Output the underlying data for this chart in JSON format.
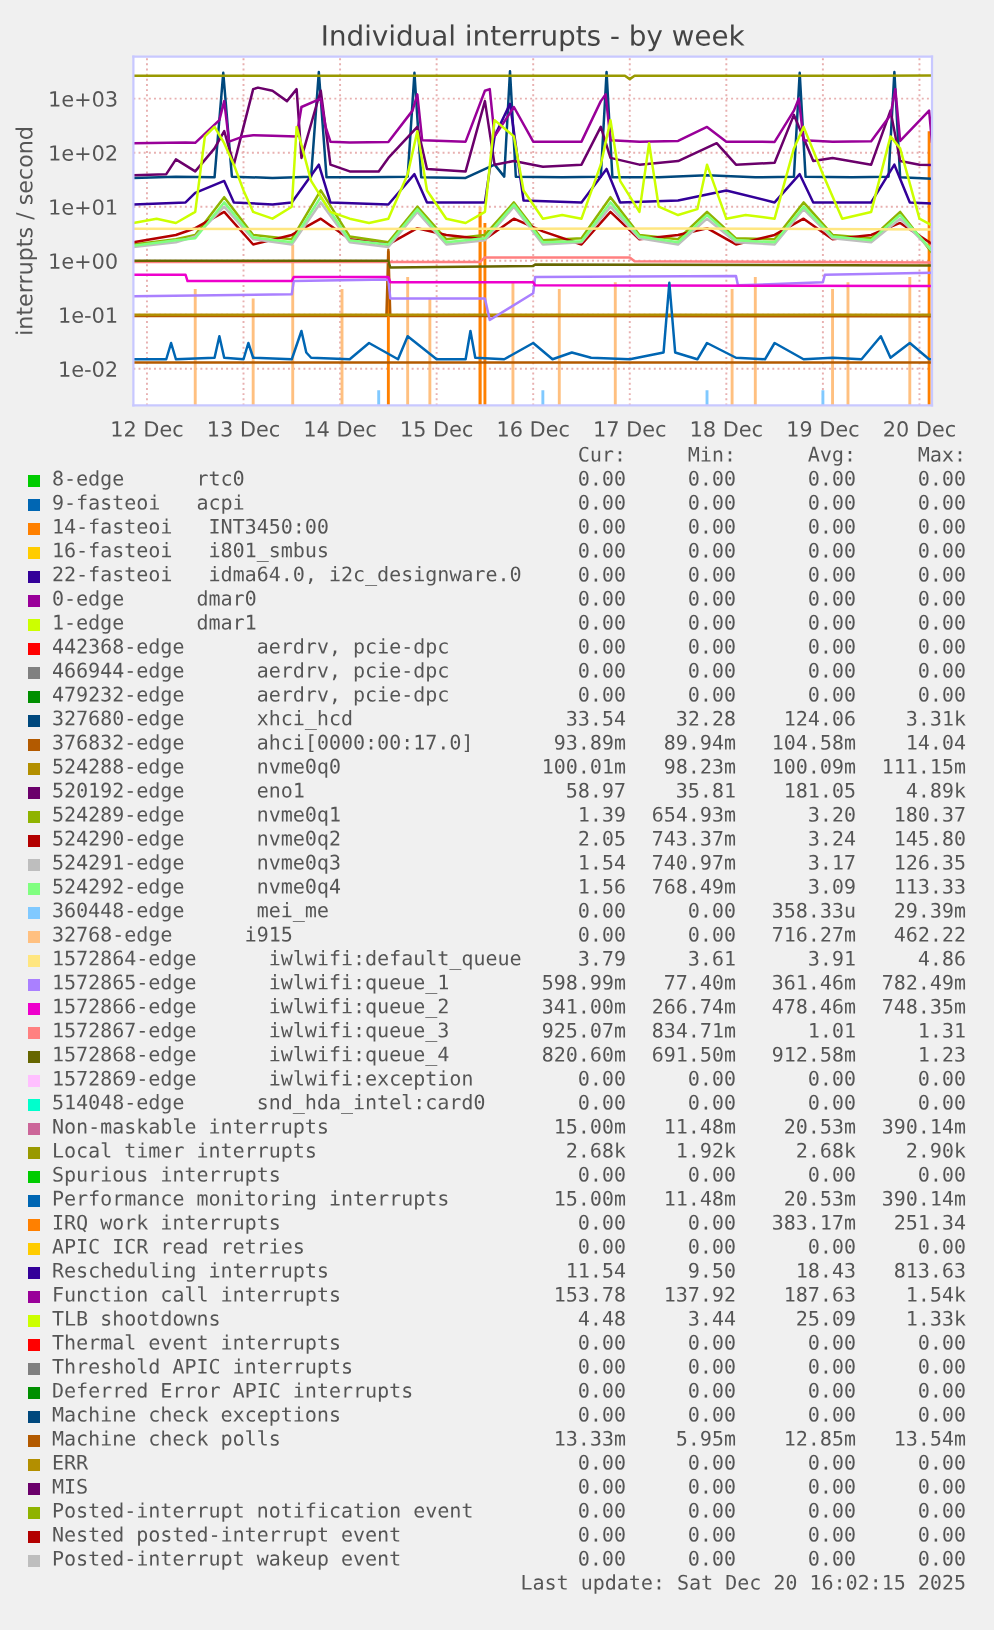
{
  "chart_data": {
    "type": "line",
    "title": "Individual interrupts - by week",
    "ylabel": "interrupts / second",
    "log": "y",
    "grid": true,
    "legend": "bottom",
    "marker": "none",
    "line_style": "solid",
    "xlim": [
      "2025-12-12T08:38",
      "2025-12-20T15:07"
    ],
    "ylim": [
      0.0021,
      6000
    ],
    "xticks": [
      {
        "value": "2025-12-12T12:00",
        "label": "12 Dec"
      },
      {
        "value": "2025-12-13T12:00",
        "label": "13 Dec"
      },
      {
        "value": "2025-12-14T12:00",
        "label": "14 Dec"
      },
      {
        "value": "2025-12-15T12:00",
        "label": "15 Dec"
      },
      {
        "value": "2025-12-16T12:00",
        "label": "16 Dec"
      },
      {
        "value": "2025-12-17T12:00",
        "label": "17 Dec"
      },
      {
        "value": "2025-12-18T12:00",
        "label": "18 Dec"
      },
      {
        "value": "2025-12-19T12:00",
        "label": "19 Dec"
      },
      {
        "value": "2025-12-20T12:00",
        "label": "20 Dec"
      }
    ],
    "yticks": [
      {
        "value": 0.01,
        "label": "1e-02"
      },
      {
        "value": 0.1,
        "label": "1e-01"
      },
      {
        "value": 1,
        "label": "1e+00"
      },
      {
        "value": 10,
        "label": "1e+01"
      },
      {
        "value": 100,
        "label": "1e+02"
      },
      {
        "value": 1000,
        "label": "1e+03"
      }
    ],
    "series": [
      {
        "name": "8-edge      rtc0",
        "color": "#00cc00"
      },
      {
        "name": "9-fasteoi   acpi",
        "color": "#0066b3"
      },
      {
        "name": "14-fasteoi   INT3450:00",
        "color": "#ff8000"
      },
      {
        "name": "16-fasteoi   i801_smbus",
        "color": "#ffcc00"
      },
      {
        "name": "22-fasteoi   idma64.0, i2c_designware.0",
        "color": "#330099"
      },
      {
        "name": "0-edge      dmar0",
        "color": "#990099"
      },
      {
        "name": "1-edge      dmar1",
        "color": "#ccff00"
      },
      {
        "name": "442368-edge      aerdrv, pcie-dpc",
        "color": "#ff0000"
      },
      {
        "name": "466944-edge      aerdrv, pcie-dpc",
        "color": "#808080"
      },
      {
        "name": "479232-edge      aerdrv, pcie-dpc",
        "color": "#008f00"
      },
      {
        "name": "327680-edge      xhci_hcd",
        "color": "#00487d",
        "x": [
          "2025-12-12T08:38",
          "2025-12-12T19:12",
          "2025-12-13T04:48",
          "2025-12-13T06:58",
          "2025-12-13T09:07",
          "2025-12-13T19:12",
          "2025-12-14T04:48",
          "2025-12-14T06:43",
          "2025-12-14T08:38",
          "2025-12-14T19:12",
          "2025-12-15T04:48",
          "2025-12-15T06:29",
          "2025-12-15T08:10",
          "2025-12-15T19:12",
          "2025-12-16T02:24",
          "2025-12-16T04:48",
          "2025-12-16T06:14",
          "2025-12-16T07:41",
          "2025-12-16T19:12",
          "2025-12-17T04:48",
          "2025-12-17T06:14",
          "2025-12-17T07:41",
          "2025-12-17T19:12",
          "2025-12-18T07:12",
          "2025-12-18T19:12",
          "2025-12-19T04:48",
          "2025-12-19T06:14",
          "2025-12-19T07:41",
          "2025-12-19T19:12",
          "2025-12-20T04:19",
          "2025-12-20T05:46",
          "2025-12-20T07:12",
          "2025-12-20T15:07"
        ],
        "values": [
          34,
          36,
          35,
          3000,
          36,
          34,
          36,
          3100,
          35,
          35,
          36,
          3000,
          35,
          34,
          60,
          36,
          3200,
          36,
          35,
          36,
          3100,
          35,
          35,
          38,
          35,
          36,
          3000,
          36,
          35,
          36,
          3100,
          35,
          33
        ]
      },
      {
        "name": "376832-edge      ahci[0000:00:17.0]",
        "color": "#b35a00",
        "x": [
          "2025-12-12T08:38",
          "2025-12-14T23:31",
          "2025-12-15T00:00",
          "2025-12-15T00:29",
          "2025-12-20T15:07"
        ],
        "values": [
          0.095,
          0.095,
          1.6,
          0.095,
          0.094
        ]
      },
      {
        "name": "524288-edge      nvme0q0",
        "color": "#b38f00",
        "x": [
          "2025-12-12T08:38",
          "2025-12-14T00:00",
          "2025-12-16T00:00",
          "2025-12-18T00:00",
          "2025-12-20T15:07"
        ],
        "values": [
          0.1,
          0.1,
          0.1,
          0.1,
          0.1
        ]
      },
      {
        "name": "520192-edge      eno1",
        "color": "#6b006b",
        "x": [
          "2025-12-12T08:38",
          "2025-12-12T16:48",
          "2025-12-12T19:12",
          "2025-12-13T00:00",
          "2025-12-13T04:48",
          "2025-12-13T07:12",
          "2025-12-13T09:36",
          "2025-12-13T14:24",
          "2025-12-13T15:36",
          "2025-12-13T19:12",
          "2025-12-13T22:48",
          "2025-12-14T01:12",
          "2025-12-14T02:24",
          "2025-12-14T06:00",
          "2025-12-14T07:12",
          "2025-12-14T09:36",
          "2025-12-14T14:24",
          "2025-12-14T21:36",
          "2025-12-15T00:00",
          "2025-12-15T07:12",
          "2025-12-15T09:36",
          "2025-12-15T19:12",
          "2025-12-16T00:00",
          "2025-12-16T02:24",
          "2025-12-16T07:12",
          "2025-12-16T14:24",
          "2025-12-17T00:00",
          "2025-12-17T04:48",
          "2025-12-17T07:12",
          "2025-12-17T14:24",
          "2025-12-18T00:00",
          "2025-12-18T09:36",
          "2025-12-18T14:24",
          "2025-12-19T00:00",
          "2025-12-19T04:48",
          "2025-12-19T09:36",
          "2025-12-19T14:24",
          "2025-12-20T00:00",
          "2025-12-20T04:48",
          "2025-12-20T07:12",
          "2025-12-20T12:00",
          "2025-12-20T15:07"
        ],
        "values": [
          38,
          40,
          75,
          45,
          120,
          250,
          60,
          1500,
          1600,
          1400,
          900,
          1500,
          80,
          700,
          1400,
          60,
          45,
          45,
          80,
          300,
          50,
          45,
          900,
          60,
          70,
          55,
          60,
          300,
          80,
          60,
          70,
          150,
          60,
          65,
          500,
          70,
          80,
          60,
          600,
          70,
          60,
          59
        ]
      },
      {
        "name": "524289-edge      nvme0q1",
        "color": "#8fb300",
        "x": [
          "2025-12-12T08:38",
          "2025-12-12T19:12",
          "2025-12-13T00:00",
          "2025-12-13T07:12",
          "2025-12-13T14:24",
          "2025-12-14T00:00",
          "2025-12-14T07:12",
          "2025-12-14T14:24",
          "2025-12-15T00:00",
          "2025-12-15T07:12",
          "2025-12-15T14:24",
          "2025-12-16T00:00",
          "2025-12-16T07:12",
          "2025-12-16T14:24",
          "2025-12-17T00:00",
          "2025-12-17T07:12",
          "2025-12-17T14:24",
          "2025-12-18T00:00",
          "2025-12-18T07:12",
          "2025-12-18T14:24",
          "2025-12-19T00:00",
          "2025-12-19T07:12",
          "2025-12-19T14:24",
          "2025-12-20T00:00",
          "2025-12-20T07:12",
          "2025-12-20T15:07"
        ],
        "values": [
          2,
          2.5,
          3,
          15,
          3,
          2.5,
          20,
          2.8,
          2.2,
          10,
          2.5,
          3,
          12,
          2.4,
          2.6,
          15,
          3,
          2.5,
          8,
          2.6,
          2.5,
          12,
          3,
          2.6,
          8,
          1.4
        ]
      },
      {
        "name": "524290-edge      nvme0q2",
        "color": "#b30000",
        "x": [
          "2025-12-12T08:38",
          "2025-12-12T19:12",
          "2025-12-13T00:00",
          "2025-12-13T07:12",
          "2025-12-13T14:24",
          "2025-12-14T00:00",
          "2025-12-14T07:12",
          "2025-12-14T14:24",
          "2025-12-15T00:00",
          "2025-12-15T07:12",
          "2025-12-15T14:24",
          "2025-12-16T00:00",
          "2025-12-16T07:12",
          "2025-12-16T14:24",
          "2025-12-17T00:00",
          "2025-12-17T07:12",
          "2025-12-17T14:24",
          "2025-12-18T00:00",
          "2025-12-18T07:12",
          "2025-12-18T14:24",
          "2025-12-19T00:00",
          "2025-12-19T07:12",
          "2025-12-19T14:24",
          "2025-12-20T00:00",
          "2025-12-20T07:12",
          "2025-12-20T15:07"
        ],
        "values": [
          2.2,
          3,
          4,
          8,
          2,
          3,
          6,
          2.5,
          2,
          4,
          3,
          2.5,
          6,
          3.5,
          2,
          8,
          2.5,
          3,
          4,
          2,
          3,
          6,
          2.5,
          3,
          5,
          2.05
        ]
      },
      {
        "name": "524291-edge      nvme0q3",
        "color": "#bebebe",
        "x": [
          "2025-12-12T08:38",
          "2025-12-12T19:12",
          "2025-12-13T00:00",
          "2025-12-13T07:12",
          "2025-12-13T14:24",
          "2025-12-14T00:00",
          "2025-12-14T07:12",
          "2025-12-14T14:24",
          "2025-12-15T00:00",
          "2025-12-15T07:12",
          "2025-12-15T14:24",
          "2025-12-16T00:00",
          "2025-12-16T07:12",
          "2025-12-16T14:24",
          "2025-12-17T00:00",
          "2025-12-17T07:12",
          "2025-12-17T14:24",
          "2025-12-18T00:00",
          "2025-12-18T07:12",
          "2025-12-18T14:24",
          "2025-12-19T00:00",
          "2025-12-19T07:12",
          "2025-12-19T14:24",
          "2025-12-20T00:00",
          "2025-12-20T07:12",
          "2025-12-20T15:07"
        ],
        "values": [
          1.8,
          2.2,
          2.8,
          10,
          2.5,
          2,
          12,
          2.2,
          1.8,
          8,
          2,
          2.4,
          10,
          2,
          2.2,
          10,
          2.6,
          2,
          6,
          2.2,
          2,
          9,
          2.6,
          2.2,
          6,
          1.54
        ]
      },
      {
        "name": "524292-edge      nvme0q4",
        "color": "#80ff80",
        "x": [
          "2025-12-12T08:38",
          "2025-12-12T19:12",
          "2025-12-13T00:00",
          "2025-12-13T07:12",
          "2025-12-13T14:24",
          "2025-12-14T00:00",
          "2025-12-14T07:12",
          "2025-12-14T14:24",
          "2025-12-15T00:00",
          "2025-12-15T07:12",
          "2025-12-15T14:24",
          "2025-12-16T00:00",
          "2025-12-16T07:12",
          "2025-12-16T14:24",
          "2025-12-17T00:00",
          "2025-12-17T07:12",
          "2025-12-17T14:24",
          "2025-12-18T00:00",
          "2025-12-18T07:12",
          "2025-12-18T14:24",
          "2025-12-19T00:00",
          "2025-12-19T07:12",
          "2025-12-19T14:24",
          "2025-12-20T00:00",
          "2025-12-20T07:12",
          "2025-12-20T15:07"
        ],
        "values": [
          1.9,
          2.4,
          2.6,
          12,
          2.7,
          2.2,
          15,
          2.4,
          2,
          9,
          2.2,
          2.6,
          11,
          2.2,
          2.3,
          12,
          2.8,
          2.2,
          7,
          2.4,
          2.2,
          10,
          2.8,
          2.4,
          7,
          1.56
        ]
      },
      {
        "name": "360448-edge      mei_me",
        "color": "#80c9ff",
        "type": "bar",
        "x": [
          "2025-12-14T21:36",
          "2025-12-16T14:24",
          "2025-12-18T07:12",
          "2025-12-19T12:00"
        ],
        "values": [
          0.004,
          0.004,
          0.004,
          0.004
        ]
      },
      {
        "name": "32768-edge      i915",
        "color": "#ffc080",
        "type": "bar",
        "x": [
          "2025-12-13T00:00",
          "2025-12-13T14:24",
          "2025-12-14T00:14",
          "2025-12-14T12:29",
          "2025-12-15T04:48",
          "2025-12-15T10:19",
          "2025-12-15T22:48",
          "2025-12-16T06:58",
          "2025-12-16T18:29",
          "2025-12-17T08:24",
          "2025-12-18T13:26",
          "2025-12-18T19:12",
          "2025-12-19T14:24",
          "2025-12-19T18:14",
          "2025-12-20T09:36"
        ],
        "values": [
          0.3,
          0.2,
          2,
          0.3,
          0.5,
          0.2,
          10,
          0.4,
          0.3,
          0.4,
          0.3,
          0.5,
          0.3,
          0.4,
          0.5
        ]
      },
      {
        "name": "1572864-edge      iwlwifi:default_queue",
        "color": "#ffe680",
        "x": [
          "2025-12-12T08:38",
          "2025-12-14T00:00",
          "2025-12-16T00:00",
          "2025-12-18T00:00",
          "2025-12-20T15:07"
        ],
        "values": [
          3.9,
          3.85,
          3.9,
          3.95,
          3.79
        ]
      },
      {
        "name": "1572865-edge      iwlwifi:queue_1",
        "color": "#aa80ff",
        "x": [
          "2025-12-12T08:38",
          "2025-12-14T00:00",
          "2025-12-14T00:29",
          "2025-12-15T00:00",
          "2025-12-15T00:29",
          "2025-12-16T00:00",
          "2025-12-16T01:12",
          "2025-12-16T12:00",
          "2025-12-16T12:29",
          "2025-12-18T14:24",
          "2025-12-18T14:53",
          "2025-12-19T12:00",
          "2025-12-19T12:29",
          "2025-12-20T15:07"
        ],
        "values": [
          0.22,
          0.24,
          0.42,
          0.45,
          0.2,
          0.2,
          0.08,
          0.25,
          0.5,
          0.52,
          0.35,
          0.4,
          0.55,
          0.6
        ]
      },
      {
        "name": "1572866-edge      iwlwifi:queue_2",
        "color": "#ee00cc",
        "x": [
          "2025-12-12T08:38",
          "2025-12-12T21:36",
          "2025-12-12T22:05",
          "2025-12-14T00:00",
          "2025-12-14T00:29",
          "2025-12-15T00:00",
          "2025-12-15T00:29",
          "2025-12-16T12:00",
          "2025-12-16T12:29",
          "2025-12-20T15:07"
        ],
        "values": [
          0.55,
          0.55,
          0.42,
          0.42,
          0.5,
          0.5,
          0.4,
          0.4,
          0.35,
          0.34
        ]
      },
      {
        "name": "1572867-edge      iwlwifi:queue_3",
        "color": "#ff8080",
        "x": [
          "2025-12-12T08:38",
          "2025-12-15T00:00",
          "2025-12-15T22:48",
          "2025-12-16T00:00",
          "2025-12-17T12:00",
          "2025-12-17T13:12",
          "2025-12-20T15:07"
        ],
        "values": [
          0.95,
          0.95,
          0.95,
          1.15,
          1.15,
          0.98,
          0.93
        ]
      },
      {
        "name": "1572868-edge      iwlwifi:queue_4",
        "color": "#666600",
        "x": [
          "2025-12-12T08:38",
          "2025-12-15T00:00",
          "2025-12-15T00:29",
          "2025-12-16T12:00",
          "2025-12-16T12:29",
          "2025-12-20T15:07"
        ],
        "values": [
          1.0,
          1.0,
          0.75,
          0.8,
          0.85,
          0.82
        ]
      },
      {
        "name": "1572869-edge      iwlwifi:exception",
        "color": "#ffbfff"
      },
      {
        "name": "514048-edge      snd_hda_intel:card0",
        "color": "#00ffcc"
      },
      {
        "name": "Non-maskable interrupts",
        "color": "#cc6699"
      },
      {
        "name": "Local timer interrupts",
        "color": "#999900",
        "x": [
          "2025-12-12T08:38",
          "2025-12-13T00:00",
          "2025-12-14T00:00",
          "2025-12-15T00:00",
          "2025-12-16T00:00",
          "2025-12-17T00:00",
          "2025-12-17T10:48",
          "2025-12-17T12:00",
          "2025-12-17T13:12",
          "2025-12-18T00:00",
          "2025-12-19T00:00",
          "2025-12-20T00:00",
          "2025-12-20T15:07"
        ],
        "values": [
          2650,
          2650,
          2640,
          2650,
          2640,
          2650,
          2650,
          2300,
          2650,
          2650,
          2640,
          2650,
          2680
        ]
      },
      {
        "name": "Spurious interrupts",
        "color": "#00cc00"
      },
      {
        "name": "Performance monitoring interrupts",
        "color": "#0066b3",
        "x": [
          "2025-12-12T08:38",
          "2025-12-12T16:48",
          "2025-12-12T18:00",
          "2025-12-12T19:12",
          "2025-12-13T04:48",
          "2025-12-13T06:00",
          "2025-12-13T07:12",
          "2025-12-13T12:00",
          "2025-12-13T13:12",
          "2025-12-13T14:24",
          "2025-12-14T00:00",
          "2025-12-14T02:24",
          "2025-12-14T03:36",
          "2025-12-14T04:48",
          "2025-12-14T14:24",
          "2025-12-14T19:12",
          "2025-12-15T02:24",
          "2025-12-15T04:48",
          "2025-12-15T12:00",
          "2025-12-15T19:12",
          "2025-12-15T20:24",
          "2025-12-15T21:36",
          "2025-12-16T04:48",
          "2025-12-16T12:00",
          "2025-12-16T16:48",
          "2025-12-16T21:36",
          "2025-12-17T02:24",
          "2025-12-17T12:00",
          "2025-12-17T20:24",
          "2025-12-17T21:50",
          "2025-12-17T23:17",
          "2025-12-18T04:48",
          "2025-12-18T07:12",
          "2025-12-18T14:24",
          "2025-12-18T21:36",
          "2025-12-19T00:00",
          "2025-12-19T07:12",
          "2025-12-19T14:24",
          "2025-12-19T21:36",
          "2025-12-20T02:24",
          "2025-12-20T04:48",
          "2025-12-20T09:36",
          "2025-12-20T14:24",
          "2025-12-20T15:07"
        ],
        "values": [
          0.015,
          0.015,
          0.03,
          0.015,
          0.016,
          0.04,
          0.016,
          0.015,
          0.03,
          0.016,
          0.015,
          0.05,
          0.02,
          0.016,
          0.015,
          0.03,
          0.015,
          0.04,
          0.015,
          0.015,
          0.05,
          0.016,
          0.015,
          0.03,
          0.015,
          0.02,
          0.016,
          0.015,
          0.02,
          0.39,
          0.02,
          0.015,
          0.03,
          0.016,
          0.015,
          0.03,
          0.015,
          0.016,
          0.015,
          0.04,
          0.016,
          0.03,
          0.015,
          0.015
        ]
      },
      {
        "name": "IRQ work interrupts",
        "color": "#ff8000",
        "type": "bar",
        "x": [
          "2025-12-15T00:00",
          "2025-12-15T22:48",
          "2025-12-16T00:00",
          "2025-12-20T14:24"
        ],
        "values": [
          1.5,
          8,
          5,
          250
        ]
      },
      {
        "name": "APIC ICR read retries",
        "color": "#ffcc00"
      },
      {
        "name": "Rescheduling interrupts",
        "color": "#330099",
        "x": [
          "2025-12-12T08:38",
          "2025-12-12T21:36",
          "2025-12-13T00:00",
          "2025-12-13T07:12",
          "2025-12-13T09:36",
          "2025-12-13T19:12",
          "2025-12-14T00:00",
          "2025-12-14T06:43",
          "2025-12-14T09:36",
          "2025-12-15T00:00",
          "2025-12-15T06:29",
          "2025-12-15T09:36",
          "2025-12-16T00:00",
          "2025-12-16T02:24",
          "2025-12-16T06:14",
          "2025-12-16T09:36",
          "2025-12-17T00:00",
          "2025-12-17T06:14",
          "2025-12-17T09:36",
          "2025-12-18T00:00",
          "2025-12-18T12:00",
          "2025-12-19T00:00",
          "2025-12-19T06:14",
          "2025-12-19T09:36",
          "2025-12-20T00:00",
          "2025-12-20T05:46",
          "2025-12-20T09:36",
          "2025-12-20T15:07"
        ],
        "values": [
          11,
          12,
          18,
          30,
          12,
          11,
          12,
          60,
          12,
          11,
          40,
          12,
          12,
          200,
          800,
          13,
          12,
          50,
          12,
          13,
          20,
          12,
          40,
          12,
          12,
          60,
          12,
          11.5
        ]
      },
      {
        "name": "Function call interrupts",
        "color": "#990099",
        "x": [
          "2025-12-12T08:38",
          "2025-12-12T21:36",
          "2025-12-13T00:00",
          "2025-12-13T06:00",
          "2025-12-13T07:12",
          "2025-12-13T08:24",
          "2025-12-13T12:00",
          "2025-12-13T14:24",
          "2025-12-13T19:12",
          "2025-12-14T01:12",
          "2025-12-14T02:24",
          "2025-12-14T07:12",
          "2025-12-14T08:24",
          "2025-12-14T09:36",
          "2025-12-14T14:24",
          "2025-12-15T00:00",
          "2025-12-15T06:00",
          "2025-12-15T07:12",
          "2025-12-15T08:24",
          "2025-12-15T19:12",
          "2025-12-16T00:00",
          "2025-12-16T01:12",
          "2025-12-16T02:24",
          "2025-12-16T07:12",
          "2025-12-16T12:00",
          "2025-12-17T00:00",
          "2025-12-17T04:48",
          "2025-12-17T06:00",
          "2025-12-17T07:12",
          "2025-12-17T14:24",
          "2025-12-18T00:00",
          "2025-12-18T07:12",
          "2025-12-18T12:00",
          "2025-12-19T00:00",
          "2025-12-19T04:48",
          "2025-12-19T06:00",
          "2025-12-19T07:12",
          "2025-12-19T14:24",
          "2025-12-20T00:00",
          "2025-12-20T04:48",
          "2025-12-20T06:00",
          "2025-12-20T07:12",
          "2025-12-20T14:24",
          "2025-12-20T15:07"
        ],
        "values": [
          150,
          155,
          152,
          400,
          900,
          160,
          200,
          210,
          205,
          200,
          700,
          1000,
          300,
          160,
          155,
          158,
          600,
          1200,
          170,
          160,
          1400,
          1500,
          200,
          700,
          160,
          160,
          900,
          1200,
          170,
          160,
          165,
          300,
          160,
          158,
          600,
          1000,
          170,
          160,
          162,
          500,
          1500,
          165,
          600,
          154
        ]
      },
      {
        "name": "TLB shootdowns",
        "color": "#ccff00",
        "x": [
          "2025-12-12T08:38",
          "2025-12-12T14:24",
          "2025-12-12T19:12",
          "2025-12-13T00:00",
          "2025-12-13T02:24",
          "2025-12-13T04:48",
          "2025-12-13T07:12",
          "2025-12-13T09:36",
          "2025-12-13T12:00",
          "2025-12-13T14:24",
          "2025-12-13T19:12",
          "2025-12-14T00:00",
          "2025-12-14T01:12",
          "2025-12-14T04:48",
          "2025-12-14T09:36",
          "2025-12-14T14:24",
          "2025-12-14T19:12",
          "2025-12-15T00:00",
          "2025-12-15T04:48",
          "2025-12-15T07:12",
          "2025-12-15T09:36",
          "2025-12-15T14:24",
          "2025-12-15T19:12",
          "2025-12-16T00:00",
          "2025-12-16T02:24",
          "2025-12-16T07:12",
          "2025-12-16T09:36",
          "2025-12-16T14:24",
          "2025-12-16T19:12",
          "2025-12-17T00:00",
          "2025-12-17T04:48",
          "2025-12-17T07:12",
          "2025-12-17T09:36",
          "2025-12-17T14:24",
          "2025-12-17T16:48",
          "2025-12-17T19:12",
          "2025-12-18T00:00",
          "2025-12-18T04:48",
          "2025-12-18T07:12",
          "2025-12-18T12:00",
          "2025-12-18T16:48",
          "2025-12-19T00:00",
          "2025-12-19T04:48",
          "2025-12-19T07:12",
          "2025-12-19T12:00",
          "2025-12-19T16:48",
          "2025-12-20T00:00",
          "2025-12-20T04:48",
          "2025-12-20T07:12",
          "2025-12-20T12:00",
          "2025-12-20T15:07"
        ],
        "values": [
          5,
          6,
          5,
          8,
          200,
          300,
          150,
          60,
          20,
          8,
          6,
          10,
          300,
          30,
          8,
          6,
          5,
          6,
          40,
          250,
          20,
          6,
          5,
          8,
          400,
          200,
          20,
          6,
          7,
          6,
          60,
          400,
          30,
          8,
          150,
          10,
          7,
          9,
          60,
          6,
          7,
          6,
          120,
          300,
          40,
          6,
          8,
          200,
          120,
          6,
          4.5
        ]
      },
      {
        "name": "Thermal event interrupts",
        "color": "#ff0000"
      },
      {
        "name": "Threshold APIC interrupts",
        "color": "#808080"
      },
      {
        "name": "Deferred Error APIC interrupts",
        "color": "#008f00"
      },
      {
        "name": "Machine check exceptions",
        "color": "#00487d"
      },
      {
        "name": "Machine check polls",
        "color": "#b35a00",
        "x": [
          "2025-12-12T08:38",
          "2025-12-14T00:00",
          "2025-12-16T00:00",
          "2025-12-18T00:00",
          "2025-12-20T15:07"
        ],
        "values": [
          0.013,
          0.013,
          0.013,
          0.013,
          0.013
        ]
      },
      {
        "name": "ERR",
        "color": "#b38f00"
      },
      {
        "name": "MIS",
        "color": "#6b006b"
      },
      {
        "name": "Posted-interrupt notification event",
        "color": "#8fb300"
      },
      {
        "name": "Nested posted-interrupt event",
        "color": "#b30000"
      },
      {
        "name": "Posted-interrupt wakeup event",
        "color": "#bebebe"
      }
    ],
    "annotations": [
      "Cur: Min: Avg: Max:",
      "0.00 0.00 0.00 0.00",
      "0.00 0.00 0.00 0.00",
      "0.00 0.00 0.00 0.00",
      "0.00 0.00 0.00 0.00",
      "0.00 0.00 0.00 0.00",
      "0.00 0.00 0.00 0.00",
      "0.00 0.00 0.00 0.00",
      "0.00 0.00 0.00 0.00",
      "0.00 0.00 0.00 0.00",
      "0.00 0.00 0.00 0.00",
      "33.54 32.28 124.06 3.31k",
      "93.89m 89.94m 104.58m 14.04",
      "100.01m 98.23m 100.09m 111.15m",
      "58.97 35.81 181.05 4.89k",
      "1.39 654.93m 3.20 180.37",
      "2.05 743.37m 3.24 145.80",
      "1.54 740.97m 3.17 126.35",
      "1.56 768.49m 3.09 113.33",
      "0.00 0.00 358.33u 29.39m",
      "0.00 0.00 716.27m 462.22",
      "3.79 3.61 3.91 4.86",
      "598.99m 77.40m 361.46m 782.49m",
      "341.00m 266.74m 478.46m 748.35m",
      "925.07m 834.71m 1.01 1.31",
      "820.60m 691.50m 912.58m 1.23",
      "0.00 0.00 0.00 0.00",
      "0.00 0.00 0.00 0.00",
      "15.00m 11.48m 20.53m 390.14m",
      "2.68k 1.92k 2.68k 2.90k",
      "0.00 0.00 0.00 0.00",
      "15.00m 11.48m 20.53m 390.14m",
      "0.00 0.00 383.17m 251.34",
      "0.00 0.00 0.00 0.00",
      "11.54 9.50 18.43 813.63",
      "153.78 137.92 187.63 1.54k",
      "4.48 3.44 25.09 1.33k",
      "0.00 0.00 0.00 0.00",
      "0.00 0.00 0.00 0.00",
      "0.00 0.00 0.00 0.00",
      "0.00 0.00 0.00 0.00",
      "13.33m 5.95m 12.85m 13.54m",
      "0.00 0.00 0.00 0.00",
      "0.00 0.00 0.00 0.00",
      "0.00 0.00 0.00 0.00",
      "0.00 0.00 0.00 0.00",
      "0.00 0.00 0.00 0.00",
      "Last update: Sat Dec 20 16:02:15 2025"
    ]
  }
}
